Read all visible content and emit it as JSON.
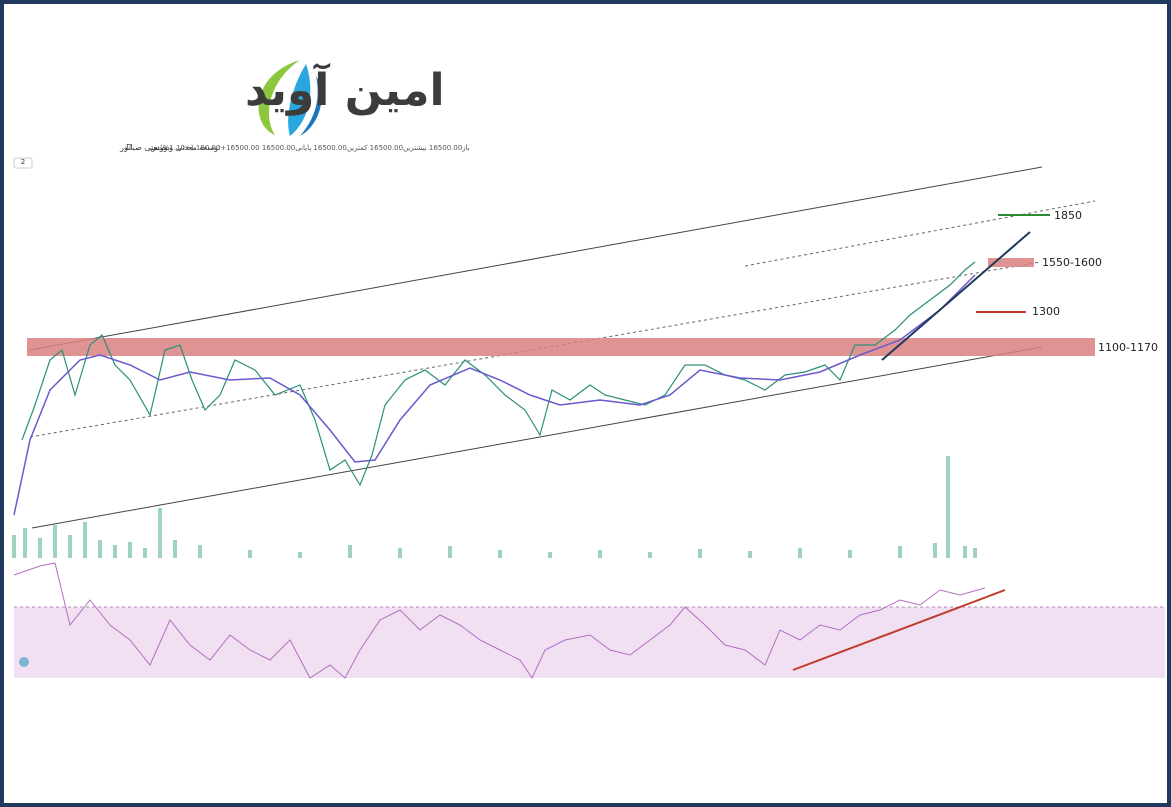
{
  "logo": {
    "text": "امین آوید"
  },
  "header": {
    "symbol": "توسعه معدنی و صنعتی صبانور",
    "interval": "D",
    "exchange": "بورس",
    "ohlc": "باز16500.00 بیشترین16500.00 کمترین16500.00 پایانی16500.00 16500.00+180.00 (+1.10%)",
    "collapse": "2"
  },
  "levels": [
    {
      "label": "1850"
    },
    {
      "label": "1550-1600"
    },
    {
      "label": "1300"
    },
    {
      "label": "1100-1170"
    }
  ]
}
